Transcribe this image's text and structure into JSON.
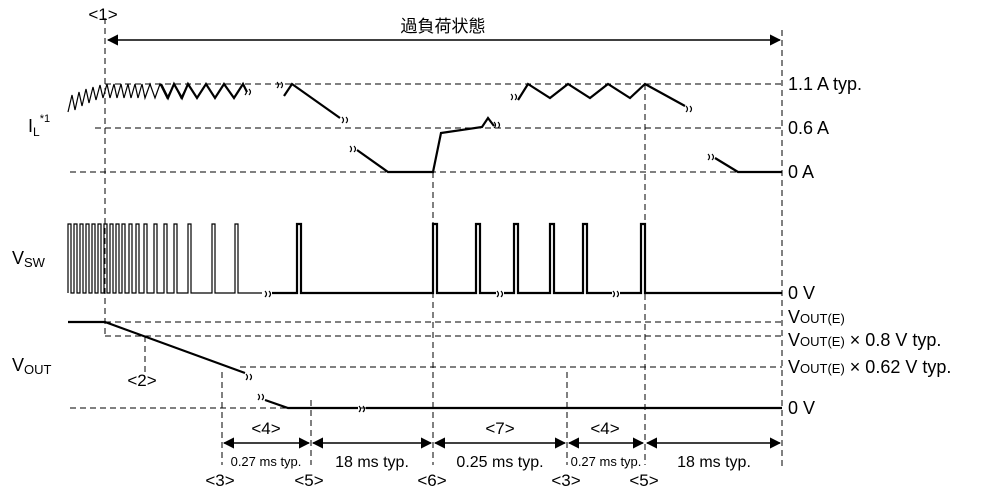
{
  "title": "過負荷状態",
  "markers": {
    "m1": "<1>",
    "m2": "<2>",
    "m3a": "<3>",
    "m3b": "<3>",
    "m4a": "<4>",
    "m4b": "<4>",
    "m5a": "<5>",
    "m5b": "<5>",
    "m6": "<6>",
    "m7": "<7>"
  },
  "signals": {
    "il": {
      "main": "I",
      "sub": "L",
      "sup": "*1"
    },
    "vsw": {
      "main": "V",
      "sub": "SW"
    },
    "vout": {
      "main": "V",
      "sub": "OUT"
    }
  },
  "levels": {
    "il_high": "1.1 A typ.",
    "il_mid": "0.6 A",
    "il_zero": "0 A",
    "vsw_zero": "0 V",
    "vout_e": {
      "v": "V",
      "sub": "OUT(E)",
      "rest": ""
    },
    "vout_08": {
      "v": "V",
      "sub": "OUT(E)",
      "rest": " × 0.8 V typ."
    },
    "vout_062": {
      "v": "V",
      "sub": "OUT(E)",
      "rest": " × 0.62 V typ."
    },
    "vout_zero": "0 V"
  },
  "durations": {
    "d4a": "0.27 ms typ.",
    "d5a": "18 ms typ.",
    "d7": "0.25 ms typ.",
    "d4b": "0.27 ms typ.",
    "d5b": "18 ms typ."
  }
}
